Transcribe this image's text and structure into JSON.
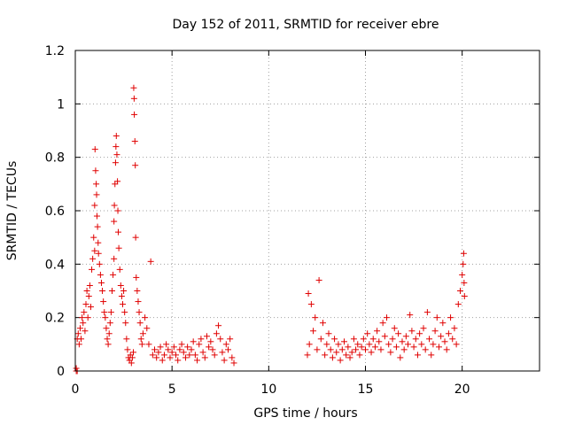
{
  "chart_data": {
    "type": "scatter",
    "title": "Day 152 of 2011, SRMTID for receiver ebre",
    "xlabel": "GPS time / hours",
    "ylabel": "SRMTID / TECUs",
    "xlim": [
      0,
      24
    ],
    "ylim": [
      0,
      1.2
    ],
    "xticks": [
      0,
      5,
      10,
      15,
      20
    ],
    "xtick_labels": [
      "0",
      "5",
      "10",
      "15",
      "20"
    ],
    "yticks": [
      0,
      0.2,
      0.4,
      0.6,
      0.8,
      1,
      1.2
    ],
    "ytick_labels": [
      "0",
      "0.2",
      "0.4",
      "0.6",
      "0.8",
      "1",
      "1.2"
    ],
    "grid": true,
    "marker": "+",
    "color": "#e00000",
    "series": [
      {
        "name": "SRMTID",
        "points": [
          [
            0.05,
            0.0
          ],
          [
            0.05,
            0.01
          ],
          [
            0.1,
            0.0
          ],
          [
            0.1,
            0.12
          ],
          [
            0.15,
            0.14
          ],
          [
            0.2,
            0.1
          ],
          [
            0.25,
            0.16
          ],
          [
            0.3,
            0.12
          ],
          [
            0.35,
            0.2
          ],
          [
            0.4,
            0.18
          ],
          [
            0.45,
            0.22
          ],
          [
            0.5,
            0.15
          ],
          [
            0.55,
            0.25
          ],
          [
            0.6,
            0.3
          ],
          [
            0.65,
            0.2
          ],
          [
            0.7,
            0.28
          ],
          [
            0.75,
            0.32
          ],
          [
            0.8,
            0.24
          ],
          [
            0.85,
            0.38
          ],
          [
            0.9,
            0.42
          ],
          [
            0.95,
            0.5
          ],
          [
            1.0,
            0.45
          ],
          [
            1.0,
            0.62
          ],
          [
            1.02,
            0.83
          ],
          [
            1.05,
            0.75
          ],
          [
            1.08,
            0.7
          ],
          [
            1.1,
            0.66
          ],
          [
            1.12,
            0.58
          ],
          [
            1.15,
            0.54
          ],
          [
            1.18,
            0.48
          ],
          [
            1.2,
            0.44
          ],
          [
            1.25,
            0.4
          ],
          [
            1.3,
            0.36
          ],
          [
            1.35,
            0.33
          ],
          [
            1.4,
            0.3
          ],
          [
            1.45,
            0.26
          ],
          [
            1.5,
            0.22
          ],
          [
            1.55,
            0.2
          ],
          [
            1.6,
            0.16
          ],
          [
            1.65,
            0.12
          ],
          [
            1.7,
            0.1
          ],
          [
            1.75,
            0.14
          ],
          [
            1.8,
            0.18
          ],
          [
            1.85,
            0.22
          ],
          [
            1.9,
            0.3
          ],
          [
            1.95,
            0.36
          ],
          [
            2.0,
            0.42
          ],
          [
            2.0,
            0.56
          ],
          [
            2.02,
            0.62
          ],
          [
            2.05,
            0.7
          ],
          [
            2.08,
            0.78
          ],
          [
            2.1,
            0.84
          ],
          [
            2.12,
            0.88
          ],
          [
            2.15,
            0.81
          ],
          [
            2.18,
            0.71
          ],
          [
            2.2,
            0.6
          ],
          [
            2.22,
            0.52
          ],
          [
            2.25,
            0.46
          ],
          [
            2.3,
            0.38
          ],
          [
            2.35,
            0.32
          ],
          [
            2.4,
            0.28
          ],
          [
            2.45,
            0.25
          ],
          [
            2.5,
            0.3
          ],
          [
            2.55,
            0.22
          ],
          [
            2.6,
            0.18
          ],
          [
            2.65,
            0.12
          ],
          [
            2.7,
            0.08
          ],
          [
            2.75,
            0.05
          ],
          [
            2.8,
            0.04
          ],
          [
            2.85,
            0.06
          ],
          [
            2.9,
            0.03
          ],
          [
            2.95,
            0.05
          ],
          [
            3.0,
            0.07
          ],
          [
            3.02,
            1.06
          ],
          [
            3.04,
            1.02
          ],
          [
            3.05,
            0.96
          ],
          [
            3.08,
            0.86
          ],
          [
            3.1,
            0.77
          ],
          [
            3.12,
            0.5
          ],
          [
            3.15,
            0.35
          ],
          [
            3.2,
            0.3
          ],
          [
            3.25,
            0.26
          ],
          [
            3.3,
            0.22
          ],
          [
            3.35,
            0.18
          ],
          [
            3.4,
            0.12
          ],
          [
            3.45,
            0.1
          ],
          [
            3.5,
            0.14
          ],
          [
            3.6,
            0.2
          ],
          [
            3.7,
            0.16
          ],
          [
            3.8,
            0.1
          ],
          [
            3.9,
            0.41
          ],
          [
            4.0,
            0.06
          ],
          [
            4.1,
            0.08
          ],
          [
            4.2,
            0.05
          ],
          [
            4.3,
            0.07
          ],
          [
            4.4,
            0.09
          ],
          [
            4.5,
            0.04
          ],
          [
            4.6,
            0.06
          ],
          [
            4.7,
            0.1
          ],
          [
            4.8,
            0.08
          ],
          [
            4.9,
            0.05
          ],
          [
            5.0,
            0.07
          ],
          [
            5.1,
            0.09
          ],
          [
            5.2,
            0.06
          ],
          [
            5.3,
            0.04
          ],
          [
            5.4,
            0.08
          ],
          [
            5.5,
            0.1
          ],
          [
            5.6,
            0.07
          ],
          [
            5.7,
            0.05
          ],
          [
            5.8,
            0.09
          ],
          [
            5.9,
            0.06
          ],
          [
            6.0,
            0.08
          ],
          [
            6.1,
            0.11
          ],
          [
            6.2,
            0.06
          ],
          [
            6.3,
            0.04
          ],
          [
            6.4,
            0.1
          ],
          [
            6.5,
            0.12
          ],
          [
            6.6,
            0.07
          ],
          [
            6.7,
            0.05
          ],
          [
            6.8,
            0.13
          ],
          [
            6.9,
            0.09
          ],
          [
            7.0,
            0.11
          ],
          [
            7.1,
            0.08
          ],
          [
            7.2,
            0.06
          ],
          [
            7.3,
            0.14
          ],
          [
            7.4,
            0.17
          ],
          [
            7.5,
            0.12
          ],
          [
            7.6,
            0.07
          ],
          [
            7.7,
            0.04
          ],
          [
            7.8,
            0.1
          ],
          [
            7.9,
            0.08
          ],
          [
            8.0,
            0.12
          ],
          [
            8.1,
            0.05
          ],
          [
            8.2,
            0.03
          ],
          [
            12.0,
            0.06
          ],
          [
            12.05,
            0.29
          ],
          [
            12.1,
            0.1
          ],
          [
            12.2,
            0.25
          ],
          [
            12.3,
            0.15
          ],
          [
            12.4,
            0.2
          ],
          [
            12.5,
            0.08
          ],
          [
            12.6,
            0.34
          ],
          [
            12.7,
            0.12
          ],
          [
            12.8,
            0.18
          ],
          [
            12.9,
            0.06
          ],
          [
            13.0,
            0.1
          ],
          [
            13.1,
            0.14
          ],
          [
            13.2,
            0.08
          ],
          [
            13.3,
            0.05
          ],
          [
            13.4,
            0.12
          ],
          [
            13.5,
            0.07
          ],
          [
            13.6,
            0.1
          ],
          [
            13.7,
            0.04
          ],
          [
            13.8,
            0.08
          ],
          [
            13.9,
            0.11
          ],
          [
            14.0,
            0.06
          ],
          [
            14.1,
            0.09
          ],
          [
            14.2,
            0.05
          ],
          [
            14.3,
            0.07
          ],
          [
            14.4,
            0.12
          ],
          [
            14.5,
            0.08
          ],
          [
            14.6,
            0.1
          ],
          [
            14.7,
            0.06
          ],
          [
            14.8,
            0.09
          ],
          [
            14.9,
            0.12
          ],
          [
            15.0,
            0.08
          ],
          [
            15.1,
            0.14
          ],
          [
            15.2,
            0.1
          ],
          [
            15.3,
            0.07
          ],
          [
            15.4,
            0.12
          ],
          [
            15.5,
            0.09
          ],
          [
            15.6,
            0.15
          ],
          [
            15.7,
            0.11
          ],
          [
            15.8,
            0.08
          ],
          [
            15.9,
            0.18
          ],
          [
            16.0,
            0.13
          ],
          [
            16.1,
            0.2
          ],
          [
            16.2,
            0.1
          ],
          [
            16.3,
            0.07
          ],
          [
            16.4,
            0.12
          ],
          [
            16.5,
            0.16
          ],
          [
            16.6,
            0.09
          ],
          [
            16.7,
            0.14
          ],
          [
            16.8,
            0.05
          ],
          [
            16.9,
            0.11
          ],
          [
            17.0,
            0.08
          ],
          [
            17.1,
            0.13
          ],
          [
            17.2,
            0.1
          ],
          [
            17.3,
            0.21
          ],
          [
            17.4,
            0.15
          ],
          [
            17.5,
            0.09
          ],
          [
            17.6,
            0.12
          ],
          [
            17.7,
            0.06
          ],
          [
            17.8,
            0.14
          ],
          [
            17.9,
            0.1
          ],
          [
            18.0,
            0.16
          ],
          [
            18.1,
            0.08
          ],
          [
            18.2,
            0.22
          ],
          [
            18.3,
            0.12
          ],
          [
            18.4,
            0.06
          ],
          [
            18.5,
            0.1
          ],
          [
            18.6,
            0.15
          ],
          [
            18.7,
            0.2
          ],
          [
            18.8,
            0.09
          ],
          [
            18.9,
            0.13
          ],
          [
            19.0,
            0.18
          ],
          [
            19.1,
            0.11
          ],
          [
            19.2,
            0.08
          ],
          [
            19.3,
            0.14
          ],
          [
            19.4,
            0.2
          ],
          [
            19.5,
            0.12
          ],
          [
            19.6,
            0.16
          ],
          [
            19.7,
            0.1
          ],
          [
            19.8,
            0.25
          ],
          [
            19.9,
            0.3
          ],
          [
            20.0,
            0.36
          ],
          [
            20.05,
            0.4
          ],
          [
            20.08,
            0.44
          ],
          [
            20.1,
            0.33
          ],
          [
            20.12,
            0.28
          ]
        ]
      }
    ]
  }
}
